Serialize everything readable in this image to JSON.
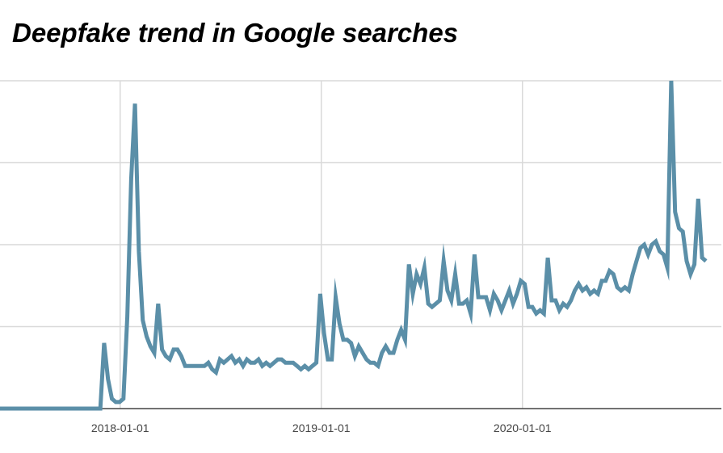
{
  "chart_data": {
    "type": "line",
    "title": "Deepfake trend in Google searches",
    "xlabel": "",
    "ylabel": "",
    "x_type": "date",
    "x_ticks": [
      "2018-01-01",
      "2019-01-01",
      "2020-01-01"
    ],
    "y_ticks": [
      0,
      25,
      50,
      75,
      100
    ],
    "ylim": [
      0,
      100
    ],
    "xlim": [
      "2017-05-28",
      "2020-12-27"
    ],
    "grid": true,
    "legend": "none",
    "colors": {
      "line": "#5b8fa8",
      "grid": "#d9d9d9",
      "axis": "#444444"
    },
    "series": [
      {
        "points": [
          [
            "2017-05-28",
            0
          ],
          [
            "2017-07-02",
            0
          ],
          [
            "2017-08-06",
            0
          ],
          [
            "2017-09-10",
            0
          ],
          [
            "2017-10-15",
            0
          ],
          [
            "2017-11-26",
            0
          ],
          [
            "2017-12-03",
            20
          ],
          [
            "2017-12-10",
            9
          ],
          [
            "2017-12-17",
            3
          ],
          [
            "2017-12-24",
            2
          ],
          [
            "2017-12-31",
            2
          ],
          [
            "2018-01-07",
            3
          ],
          [
            "2018-01-14",
            28
          ],
          [
            "2018-01-21",
            70
          ],
          [
            "2018-01-28",
            93
          ],
          [
            "2018-02-04",
            48
          ],
          [
            "2018-02-11",
            27
          ],
          [
            "2018-02-18",
            22
          ],
          [
            "2018-02-25",
            19
          ],
          [
            "2018-03-04",
            17
          ],
          [
            "2018-03-11",
            32
          ],
          [
            "2018-03-18",
            18
          ],
          [
            "2018-03-25",
            16
          ],
          [
            "2018-04-01",
            15
          ],
          [
            "2018-04-08",
            18
          ],
          [
            "2018-04-15",
            18
          ],
          [
            "2018-04-22",
            16
          ],
          [
            "2018-04-29",
            13
          ],
          [
            "2018-05-13",
            13
          ],
          [
            "2018-06-03",
            13
          ],
          [
            "2018-06-10",
            14
          ],
          [
            "2018-06-17",
            12
          ],
          [
            "2018-06-24",
            11
          ],
          [
            "2018-07-01",
            15
          ],
          [
            "2018-07-08",
            14
          ],
          [
            "2018-07-15",
            15
          ],
          [
            "2018-07-22",
            16
          ],
          [
            "2018-07-29",
            14
          ],
          [
            "2018-08-05",
            15
          ],
          [
            "2018-08-12",
            13
          ],
          [
            "2018-08-19",
            15
          ],
          [
            "2018-08-26",
            14
          ],
          [
            "2018-09-02",
            14
          ],
          [
            "2018-09-09",
            15
          ],
          [
            "2018-09-16",
            13
          ],
          [
            "2018-09-23",
            14
          ],
          [
            "2018-09-30",
            13
          ],
          [
            "2018-10-07",
            14
          ],
          [
            "2018-10-14",
            15
          ],
          [
            "2018-10-21",
            15
          ],
          [
            "2018-10-28",
            14
          ],
          [
            "2018-11-11",
            14
          ],
          [
            "2018-11-18",
            13
          ],
          [
            "2018-11-25",
            12
          ],
          [
            "2018-12-02",
            13
          ],
          [
            "2018-12-09",
            12
          ],
          [
            "2018-12-16",
            13
          ],
          [
            "2018-12-23",
            14
          ],
          [
            "2018-12-30",
            35
          ],
          [
            "2019-01-06",
            23
          ],
          [
            "2019-01-13",
            15
          ],
          [
            "2019-01-20",
            15
          ],
          [
            "2019-01-27",
            34
          ],
          [
            "2019-02-03",
            26
          ],
          [
            "2019-02-10",
            21
          ],
          [
            "2019-02-17",
            21
          ],
          [
            "2019-02-24",
            20
          ],
          [
            "2019-03-03",
            16
          ],
          [
            "2019-03-10",
            19
          ],
          [
            "2019-03-17",
            17
          ],
          [
            "2019-03-24",
            15
          ],
          [
            "2019-03-31",
            14
          ],
          [
            "2019-04-07",
            14
          ],
          [
            "2019-04-14",
            13
          ],
          [
            "2019-04-21",
            17
          ],
          [
            "2019-04-28",
            19
          ],
          [
            "2019-05-05",
            17
          ],
          [
            "2019-05-12",
            17
          ],
          [
            "2019-05-19",
            21
          ],
          [
            "2019-05-26",
            24
          ],
          [
            "2019-06-02",
            21
          ],
          [
            "2019-06-09",
            44
          ],
          [
            "2019-06-16",
            35
          ],
          [
            "2019-06-23",
            41
          ],
          [
            "2019-06-30",
            38
          ],
          [
            "2019-07-07",
            43
          ],
          [
            "2019-07-14",
            32
          ],
          [
            "2019-07-21",
            31
          ],
          [
            "2019-07-28",
            32
          ],
          [
            "2019-08-04",
            33
          ],
          [
            "2019-08-11",
            45
          ],
          [
            "2019-08-18",
            36
          ],
          [
            "2019-08-25",
            33
          ],
          [
            "2019-09-01",
            41
          ],
          [
            "2019-09-08",
            32
          ],
          [
            "2019-09-15",
            32
          ],
          [
            "2019-09-22",
            33
          ],
          [
            "2019-09-29",
            29
          ],
          [
            "2019-10-06",
            47
          ],
          [
            "2019-10-13",
            34
          ],
          [
            "2019-10-20",
            34
          ],
          [
            "2019-10-27",
            34
          ],
          [
            "2019-11-03",
            30
          ],
          [
            "2019-11-10",
            35
          ],
          [
            "2019-11-17",
            33
          ],
          [
            "2019-11-24",
            30
          ],
          [
            "2019-12-01",
            33
          ],
          [
            "2019-12-08",
            36
          ],
          [
            "2019-12-15",
            32
          ],
          [
            "2019-12-22",
            35
          ],
          [
            "2019-12-29",
            39
          ],
          [
            "2020-01-05",
            38
          ],
          [
            "2020-01-12",
            31
          ],
          [
            "2020-01-19",
            31
          ],
          [
            "2020-01-26",
            29
          ],
          [
            "2020-02-02",
            30
          ],
          [
            "2020-02-09",
            29
          ],
          [
            "2020-02-16",
            46
          ],
          [
            "2020-02-23",
            33
          ],
          [
            "2020-03-01",
            33
          ],
          [
            "2020-03-08",
            30
          ],
          [
            "2020-03-15",
            32
          ],
          [
            "2020-03-22",
            31
          ],
          [
            "2020-03-29",
            33
          ],
          [
            "2020-04-05",
            36
          ],
          [
            "2020-04-12",
            38
          ],
          [
            "2020-04-19",
            36
          ],
          [
            "2020-04-26",
            37
          ],
          [
            "2020-05-03",
            35
          ],
          [
            "2020-05-10",
            36
          ],
          [
            "2020-05-17",
            35
          ],
          [
            "2020-05-24",
            39
          ],
          [
            "2020-05-31",
            39
          ],
          [
            "2020-06-07",
            42
          ],
          [
            "2020-06-14",
            41
          ],
          [
            "2020-06-21",
            37
          ],
          [
            "2020-06-28",
            36
          ],
          [
            "2020-07-05",
            37
          ],
          [
            "2020-07-12",
            36
          ],
          [
            "2020-07-19",
            41
          ],
          [
            "2020-07-26",
            45
          ],
          [
            "2020-08-02",
            49
          ],
          [
            "2020-08-09",
            50
          ],
          [
            "2020-08-16",
            47
          ],
          [
            "2020-08-23",
            50
          ],
          [
            "2020-08-30",
            51
          ],
          [
            "2020-09-06",
            48
          ],
          [
            "2020-09-13",
            47
          ],
          [
            "2020-09-20",
            43
          ],
          [
            "2020-09-27",
            100
          ],
          [
            "2020-10-04",
            60
          ],
          [
            "2020-10-11",
            55
          ],
          [
            "2020-10-18",
            54
          ],
          [
            "2020-10-25",
            45
          ],
          [
            "2020-11-01",
            41
          ],
          [
            "2020-11-08",
            44
          ],
          [
            "2020-11-15",
            64
          ],
          [
            "2020-11-22",
            46
          ],
          [
            "2020-11-29",
            45
          ]
        ]
      }
    ]
  }
}
